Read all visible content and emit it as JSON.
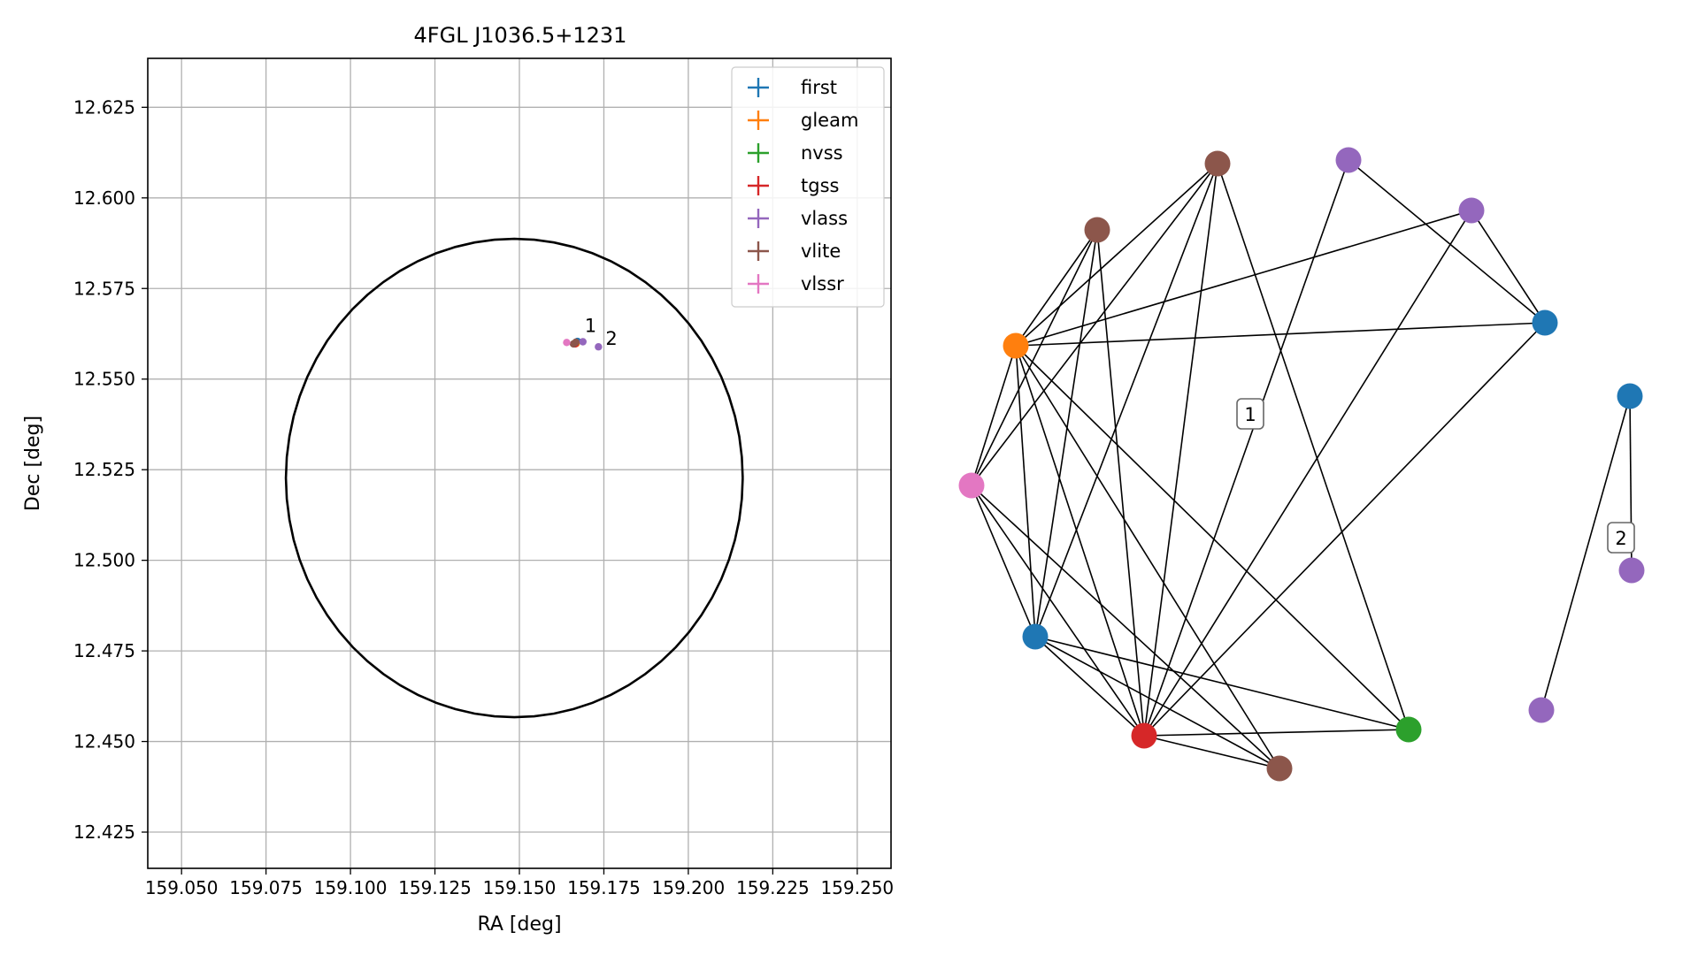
{
  "chart_data": [
    {
      "type": "scatter",
      "title": "4FGL J1036.5+1231",
      "xlabel": "RA [deg]",
      "ylabel": "Dec [deg]",
      "xlim": [
        159.04,
        159.26
      ],
      "ylim": [
        12.415,
        12.6385
      ],
      "xticks": [
        "159.050",
        "159.075",
        "159.100",
        "159.125",
        "159.150",
        "159.175",
        "159.200",
        "159.225",
        "159.250"
      ],
      "yticks": [
        "12.425",
        "12.450",
        "12.475",
        "12.500",
        "12.525",
        "12.550",
        "12.575",
        "12.600",
        "12.625"
      ],
      "grid": true,
      "legend_position": "top-right",
      "circle": {
        "center": [
          159.1485,
          12.5227
        ],
        "radius_deg": 0.066
      },
      "series": [
        {
          "name": "first",
          "color": "#1f77b4",
          "points": [
            [
              159.1672,
              12.5604
            ]
          ]
        },
        {
          "name": "gleam",
          "color": "#ff7f0e",
          "points": [
            [
              159.1668,
              12.5598
            ]
          ]
        },
        {
          "name": "nvss",
          "color": "#2ca02c",
          "points": [
            [
              159.1666,
              12.5599
            ]
          ]
        },
        {
          "name": "tgss",
          "color": "#d62728",
          "points": [
            [
              159.1665,
              12.5597
            ]
          ]
        },
        {
          "name": "vlass",
          "color": "#9467bd",
          "points": [
            [
              159.1688,
              12.5603
            ],
            [
              159.1734,
              12.5589
            ]
          ]
        },
        {
          "name": "vlite",
          "color": "#8c564b",
          "points": [
            [
              159.166,
              12.5597
            ],
            [
              159.1667,
              12.5602
            ]
          ]
        },
        {
          "name": "vlssr",
          "color": "#e377c2",
          "points": [
            [
              159.164,
              12.5601
            ]
          ]
        }
      ],
      "annotations": [
        {
          "text": "1",
          "x": 159.1693,
          "y": 12.563
        },
        {
          "text": "2",
          "x": 159.1755,
          "y": 12.5595
        }
      ]
    },
    {
      "type": "network",
      "nodes": [
        {
          "id": "a",
          "catalog": "vlite",
          "color": "#8c564b"
        },
        {
          "id": "b",
          "catalog": "vlass",
          "color": "#9467bd"
        },
        {
          "id": "c",
          "catalog": "vlass",
          "color": "#9467bd"
        },
        {
          "id": "d",
          "catalog": "vlite",
          "color": "#8c564b"
        },
        {
          "id": "e",
          "catalog": "gleam",
          "color": "#ff7f0e"
        },
        {
          "id": "f",
          "catalog": "first",
          "color": "#1f77b4"
        },
        {
          "id": "g",
          "catalog": "first",
          "color": "#1f77b4"
        },
        {
          "id": "h",
          "catalog": "vlssr",
          "color": "#e377c2"
        },
        {
          "id": "i",
          "catalog": "first",
          "color": "#1f77b4"
        },
        {
          "id": "j",
          "catalog": "vlass",
          "color": "#9467bd"
        },
        {
          "id": "k",
          "catalog": "vlass",
          "color": "#9467bd"
        },
        {
          "id": "l",
          "catalog": "tgss",
          "color": "#d62728"
        },
        {
          "id": "m",
          "catalog": "nvss",
          "color": "#2ca02c"
        },
        {
          "id": "n",
          "catalog": "vlite",
          "color": "#8c564b"
        }
      ],
      "edges": [
        [
          "a",
          "e"
        ],
        [
          "a",
          "h"
        ],
        [
          "a",
          "i"
        ],
        [
          "a",
          "l"
        ],
        [
          "a",
          "m"
        ],
        [
          "b",
          "f"
        ],
        [
          "b",
          "l"
        ],
        [
          "c",
          "e"
        ],
        [
          "c",
          "f"
        ],
        [
          "c",
          "l"
        ],
        [
          "d",
          "e"
        ],
        [
          "d",
          "h"
        ],
        [
          "d",
          "i"
        ],
        [
          "d",
          "l"
        ],
        [
          "e",
          "f"
        ],
        [
          "e",
          "h"
        ],
        [
          "e",
          "i"
        ],
        [
          "e",
          "l"
        ],
        [
          "e",
          "m"
        ],
        [
          "e",
          "n"
        ],
        [
          "h",
          "i"
        ],
        [
          "h",
          "l"
        ],
        [
          "h",
          "n"
        ],
        [
          "i",
          "l"
        ],
        [
          "i",
          "m"
        ],
        [
          "i",
          "n"
        ],
        [
          "l",
          "m"
        ],
        [
          "l",
          "n"
        ],
        [
          "l",
          "f"
        ],
        [
          "g",
          "j"
        ],
        [
          "g",
          "k"
        ]
      ],
      "labels": [
        {
          "text": "1"
        },
        {
          "text": "2"
        }
      ]
    }
  ]
}
